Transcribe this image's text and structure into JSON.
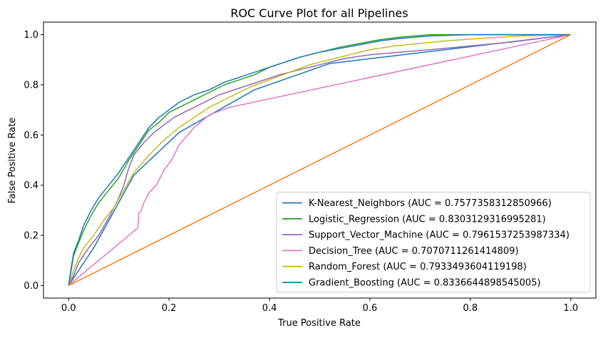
{
  "chart_data": {
    "type": "line",
    "title": "ROC Curve Plot for all Pipelines",
    "xlabel": "True Positive Rate",
    "ylabel": "False Positive Rate",
    "xlim": [
      -0.05,
      1.05
    ],
    "ylim": [
      -0.05,
      1.05
    ],
    "xticks": [
      "0.0",
      "0.2",
      "0.4",
      "0.6",
      "0.8",
      "1.0"
    ],
    "yticks": [
      "0.0",
      "0.2",
      "0.4",
      "0.6",
      "0.8",
      "1.0"
    ],
    "grid": false,
    "legend_position": "lower-right",
    "series": [
      {
        "name": "K-Nearest_Neighbors (AUC = 0.7577358312850966)",
        "color": "#1f77b4",
        "x": [
          0,
          0.05,
          0.13,
          0.22,
          0.37,
          0.52,
          1.0
        ],
        "y": [
          0,
          0.15,
          0.44,
          0.61,
          0.78,
          0.885,
          1.0
        ]
      },
      {
        "name": "Logistic_Regression (AUC = 0.8303129316995281)",
        "color": "#2ca02c",
        "x": [
          0,
          0.005,
          0.01,
          0.02,
          0.03,
          0.045,
          0.06,
          0.08,
          0.1,
          0.12,
          0.14,
          0.16,
          0.18,
          0.2,
          0.22,
          0.25,
          0.28,
          0.31,
          0.34,
          0.37,
          0.4,
          0.43,
          0.46,
          0.5,
          0.54,
          0.58,
          0.62,
          0.66,
          0.72,
          0.8,
          0.9,
          1.0
        ],
        "y": [
          0,
          0.06,
          0.12,
          0.17,
          0.22,
          0.28,
          0.33,
          0.38,
          0.43,
          0.5,
          0.56,
          0.62,
          0.65,
          0.69,
          0.71,
          0.74,
          0.77,
          0.8,
          0.82,
          0.84,
          0.87,
          0.89,
          0.91,
          0.93,
          0.95,
          0.965,
          0.98,
          0.99,
          1.0,
          1.0,
          1.0,
          1.0
        ]
      },
      {
        "name": "Support_Vector_Machine (AUC = 0.7961537253987334)",
        "color": "#9467bd",
        "x": [
          0,
          0.01,
          0.02,
          0.04,
          0.06,
          0.08,
          0.1,
          0.11,
          0.12,
          0.13,
          0.15,
          0.17,
          0.19,
          0.21,
          0.24,
          0.27,
          0.3,
          0.33,
          0.36,
          0.39,
          0.42,
          0.46,
          0.5,
          0.55,
          0.6,
          0.66,
          0.72,
          0.8,
          0.88,
          1.0
        ],
        "y": [
          0,
          0.04,
          0.09,
          0.15,
          0.2,
          0.27,
          0.35,
          0.4,
          0.47,
          0.52,
          0.57,
          0.61,
          0.64,
          0.67,
          0.7,
          0.73,
          0.76,
          0.78,
          0.8,
          0.82,
          0.84,
          0.86,
          0.88,
          0.905,
          0.92,
          0.93,
          0.94,
          0.955,
          0.97,
          1.0
        ]
      },
      {
        "name": "Decision_Tree (AUC = 0.7070711261414809)",
        "color": "#e377c2",
        "x": [
          0,
          0.138,
          0.14,
          0.145,
          0.15,
          0.16,
          0.175,
          0.19,
          0.205,
          0.22,
          0.25,
          0.28,
          0.32,
          1.0
        ],
        "y": [
          0,
          0.23,
          0.29,
          0.3,
          0.33,
          0.37,
          0.4,
          0.46,
          0.5,
          0.56,
          0.63,
          0.68,
          0.71,
          1.0
        ]
      },
      {
        "name": "Random_Forest (AUC = 0.7933493604119198)",
        "color": "#bcbd22",
        "x": [
          0,
          0.01,
          0.02,
          0.03,
          0.05,
          0.07,
          0.09,
          0.11,
          0.13,
          0.16,
          0.19,
          0.22,
          0.25,
          0.28,
          0.32,
          0.36,
          0.4,
          0.44,
          0.48,
          0.52,
          0.56,
          0.6,
          0.65,
          0.7,
          0.75,
          0.82,
          0.9,
          1.0
        ],
        "y": [
          0,
          0.06,
          0.11,
          0.15,
          0.2,
          0.26,
          0.31,
          0.38,
          0.45,
          0.52,
          0.58,
          0.63,
          0.67,
          0.71,
          0.75,
          0.79,
          0.82,
          0.85,
          0.88,
          0.9,
          0.92,
          0.94,
          0.955,
          0.965,
          0.975,
          0.985,
          0.995,
          1.0
        ]
      },
      {
        "name": "Gradient_Boosting (AUC = 0.8336644898545005)",
        "color": "#1f77b4",
        "x": [
          0,
          0.005,
          0.01,
          0.02,
          0.03,
          0.045,
          0.06,
          0.08,
          0.1,
          0.12,
          0.14,
          0.16,
          0.18,
          0.2,
          0.22,
          0.25,
          0.28,
          0.31,
          0.34,
          0.37,
          0.4,
          0.43,
          0.46,
          0.5,
          0.54,
          0.58,
          0.62,
          0.66,
          0.72,
          0.8,
          0.9,
          1.0
        ],
        "y": [
          0,
          0.07,
          0.13,
          0.18,
          0.24,
          0.3,
          0.35,
          0.4,
          0.45,
          0.51,
          0.57,
          0.63,
          0.67,
          0.7,
          0.73,
          0.76,
          0.78,
          0.81,
          0.83,
          0.85,
          0.87,
          0.89,
          0.91,
          0.93,
          0.945,
          0.96,
          0.975,
          0.985,
          0.995,
          1.0,
          1.0,
          1.0
        ]
      }
    ],
    "reference_line": {
      "color": "#ff7f0e",
      "x": [
        0,
        1
      ],
      "y": [
        0,
        1
      ]
    }
  }
}
